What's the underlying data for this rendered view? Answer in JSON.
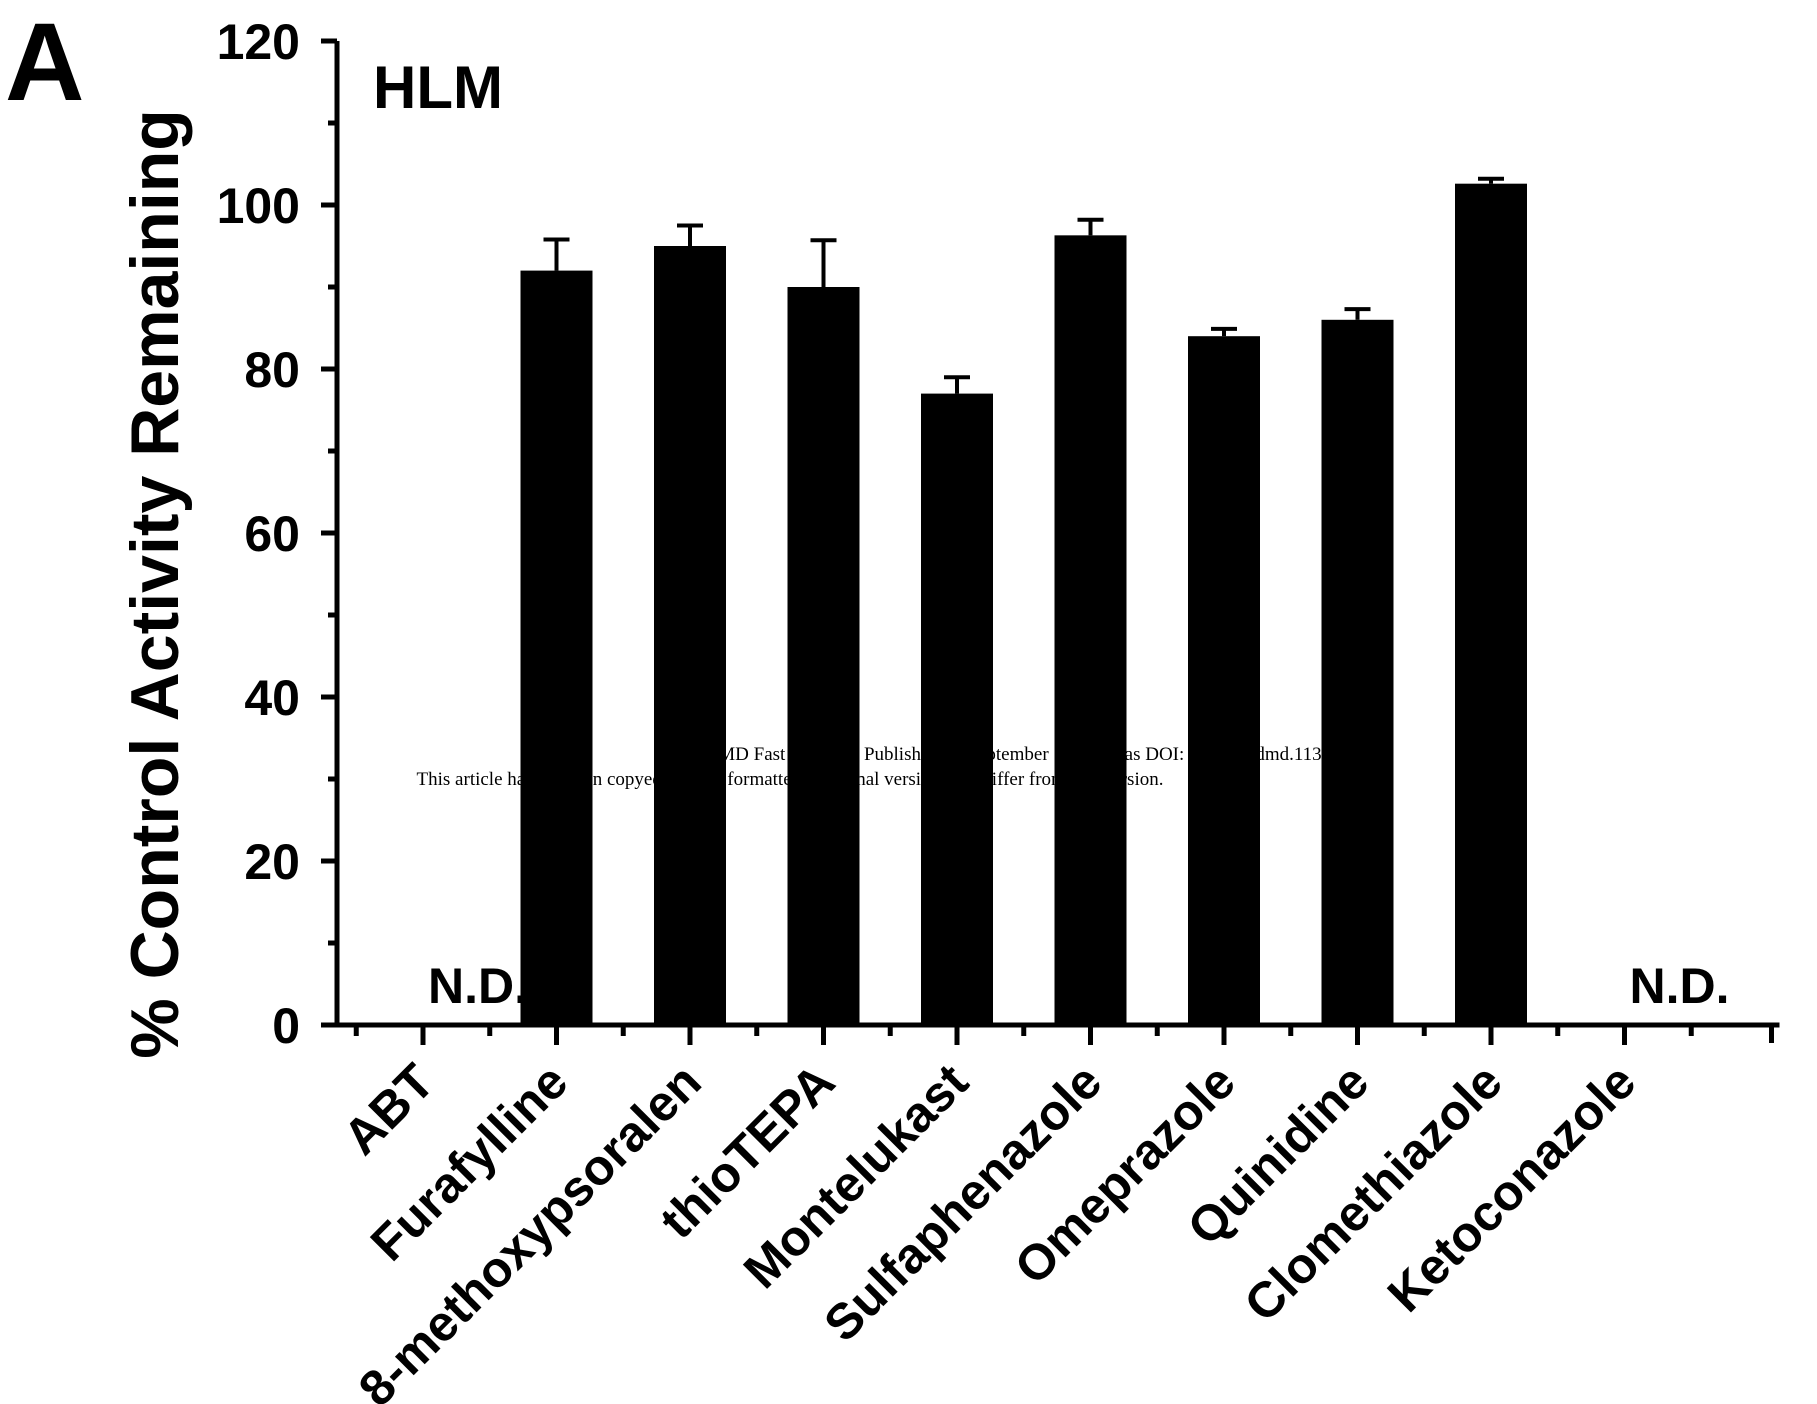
{
  "panel_label": "A",
  "watermark": {
    "line1": "DMD Fast Forward. Published on September 16, 2013 as DOI: 10.1124/dmd.113.053884",
    "line2": "This article has not been copyedited and formatted. The final version may differ from this version."
  },
  "chart_data": {
    "type": "bar",
    "title": "HLM",
    "xlabel": "",
    "ylabel": "% Control Activity Remaining",
    "ylim": [
      0,
      120
    ],
    "yticks": [
      0,
      20,
      40,
      60,
      80,
      100,
      120
    ],
    "grid": false,
    "categories": [
      "ABT",
      "Furafylline",
      "8-methoxypsoralen",
      "thioTEPA",
      "Montelukast",
      "Sulfaphenazole",
      "Omeprazole",
      "Quinidine",
      "Clomethiazole",
      "Ketoconazole"
    ],
    "values": [
      null,
      92,
      95,
      90,
      77,
      96.3,
      84,
      86,
      102.6,
      null
    ],
    "errors": [
      null,
      3.8,
      2.5,
      5.7,
      2.0,
      1.9,
      0.9,
      1.3,
      0.6,
      null
    ],
    "annotations": [
      {
        "category": "ABT",
        "text": "N.D."
      },
      {
        "category": "Ketoconazole",
        "text": "N.D."
      }
    ],
    "colors": {
      "bar": "#000000",
      "axis": "#000000"
    }
  }
}
